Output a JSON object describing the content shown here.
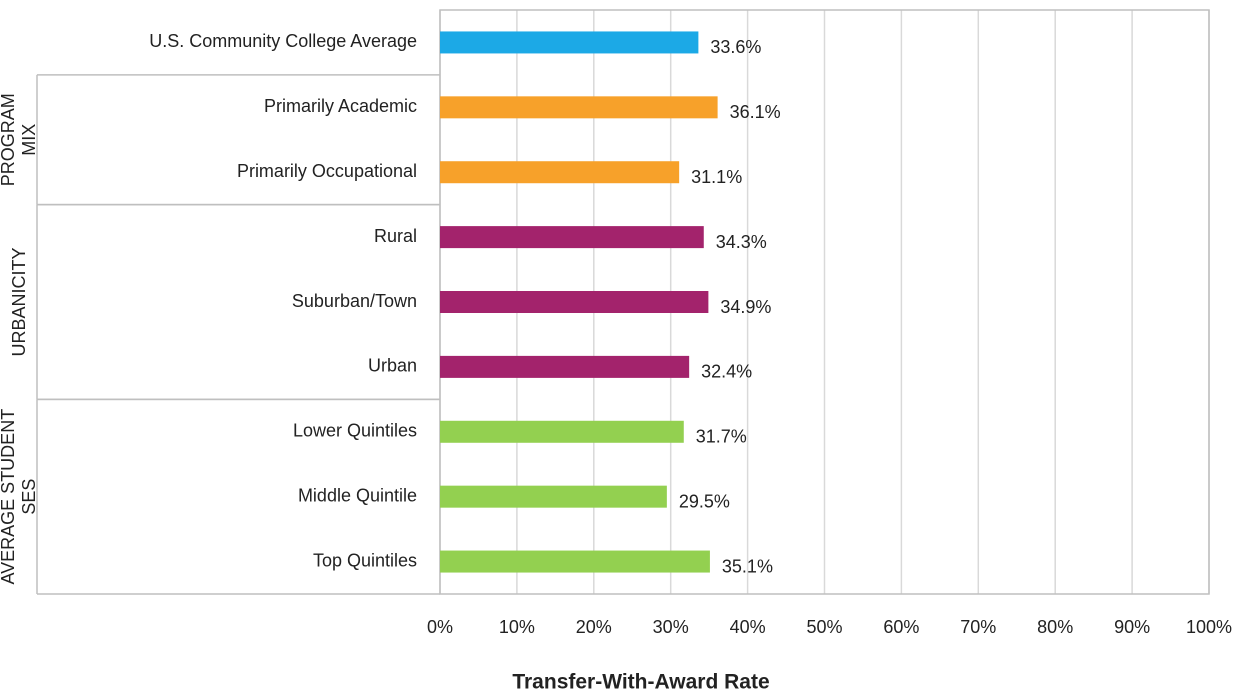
{
  "chart_data": {
    "type": "bar",
    "orientation": "horizontal",
    "xlabel": "Transfer-With-Award Rate",
    "xlim": [
      0,
      100
    ],
    "xticks": [
      {
        "value": 0,
        "label": "0%"
      },
      {
        "value": 10,
        "label": "10%"
      },
      {
        "value": 20,
        "label": "20%"
      },
      {
        "value": 30,
        "label": "30%"
      },
      {
        "value": 40,
        "label": "40%"
      },
      {
        "value": 50,
        "label": "50%"
      },
      {
        "value": 60,
        "label": "60%"
      },
      {
        "value": 70,
        "label": "70%"
      },
      {
        "value": 80,
        "label": "80%"
      },
      {
        "value": 90,
        "label": "90%"
      },
      {
        "value": 100,
        "label": "100%"
      }
    ],
    "grid": true,
    "groups": [
      {
        "categories": [
          "U.S. Community College Average"
        ],
        "values": [
          33.6
        ],
        "value_labels": [
          "33.6%"
        ],
        "color": "#1ca9e6"
      },
      {
        "label": [
          "PROGRAM",
          "MIX"
        ],
        "categories": [
          "Primarily Academic",
          "Primarily Occupational"
        ],
        "values": [
          36.1,
          31.1
        ],
        "value_labels": [
          "36.1%",
          "31.1%"
        ],
        "color": "#f7a12a"
      },
      {
        "label": [
          "URBANICITY"
        ],
        "categories": [
          "Rural",
          "Suburban/Town",
          "Urban"
        ],
        "values": [
          34.3,
          34.9,
          32.4
        ],
        "value_labels": [
          "34.3%",
          "34.9%",
          "32.4%"
        ],
        "color": "#a3236c"
      },
      {
        "label": [
          "AVERAGE STUDENT",
          "SES"
        ],
        "categories": [
          "Lower Quintiles",
          "Middle Quintile",
          "Top Quintiles"
        ],
        "values": [
          31.7,
          29.5,
          35.1
        ],
        "value_labels": [
          "31.7%",
          "29.5%",
          "35.1%"
        ],
        "color": "#93d050"
      }
    ]
  }
}
